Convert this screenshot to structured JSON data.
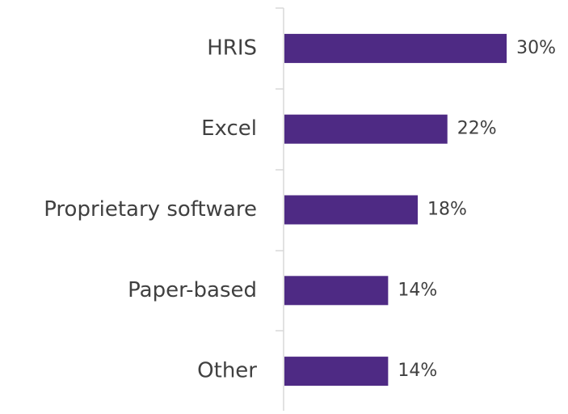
{
  "chart_data": {
    "type": "bar",
    "orientation": "horizontal",
    "categories": [
      "HRIS",
      "Excel",
      "Proprietary software",
      "Paper-based",
      "Other"
    ],
    "values": [
      30,
      22,
      18,
      14,
      14
    ],
    "value_labels": [
      "30%",
      "22%",
      "18%",
      "14%",
      "14%"
    ],
    "color": "#4e2a84"
  }
}
